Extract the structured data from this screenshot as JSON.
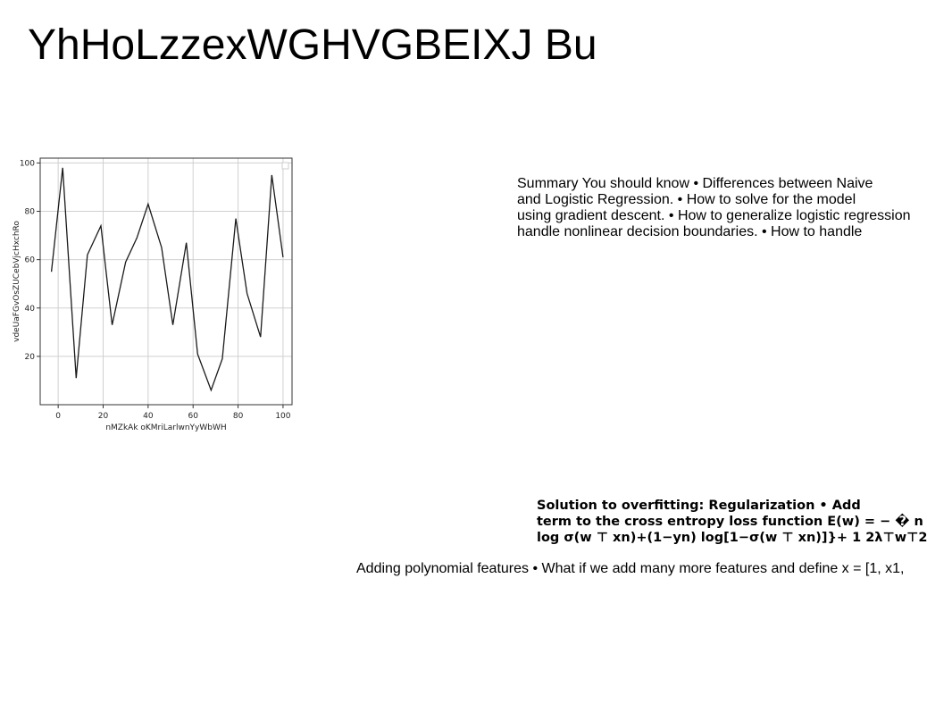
{
  "title": "YhHoLzzexWGHVGBEIXJ Bu",
  "summary_lines": [
    "Summary You should know • Differences between Naive",
    "and Logistic Regression. • How to solve for the model",
    "using gradient descent. • How to generalize logistic regression",
    "handle nonlinear decision boundaries. • How to handle"
  ],
  "solution_lines": [
    "Solution to overfitting: Regularization • Add",
    "term to the cross entropy loss function E(w) = − � n",
    "log σ(w ⊤ xn)+(1−yn) log[1−σ(w ⊤ xn)]}+ 1 2λ⊤w⊤2"
  ],
  "polynomial_text": "Adding polynomial features • What if we add many more features and define x = [1, x1,",
  "chart_data": {
    "type": "line",
    "xlabel": "nMZkAk oKMriLarlwnYyWbWH",
    "ylabel": "vdeUaFGvOsZUCebVjcHxchRo",
    "xlim": [
      -8,
      104
    ],
    "ylim": [
      0,
      102
    ],
    "xticks": [
      0,
      20,
      40,
      60,
      80,
      100
    ],
    "yticks": [
      20,
      40,
      60,
      80,
      100
    ],
    "grid": true,
    "legend": "top-right",
    "series": [
      {
        "color": "#1a1a1a",
        "x": [
          -3,
          2,
          8,
          13,
          19,
          24,
          30,
          35,
          40,
          46,
          51,
          57,
          62,
          68,
          73,
          79,
          84,
          90,
          95,
          100
        ],
        "y": [
          55,
          98,
          11,
          62,
          74,
          33,
          59,
          69,
          83,
          65,
          33,
          67,
          21,
          6,
          19,
          77,
          46,
          28,
          95,
          61
        ]
      }
    ]
  }
}
